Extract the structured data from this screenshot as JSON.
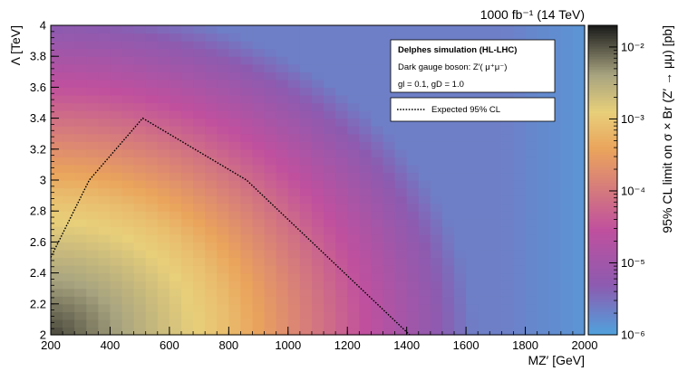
{
  "header": {
    "luminosity": "1000 fb⁻¹ (14 TeV)"
  },
  "legend": {
    "title": "Delphes simulation (HL-LHC)",
    "model": "Dark gauge boson: Z′( μ⁺μ⁻)",
    "couplings": "gl = 0.1, gD = 1.0",
    "curve_label": "Expected 95% CL"
  },
  "colors": {
    "dark_corner": "#1a1a1a",
    "yellow": "#e8cf7a",
    "orange": "#eaa45c",
    "magenta": "#c0509e",
    "purple": "#8c5bb0",
    "blue": "#4fa3de",
    "curve": "#000000"
  },
  "chart_data": {
    "type": "heatmap",
    "xlabel": "MZ′ [GeV]",
    "ylabel": "Λ [TeV]",
    "zlabel": "95% CL limit on σ × Br (Z′ → μμ) [pb]",
    "xlim": [
      200,
      2000
    ],
    "ylim": [
      2,
      4
    ],
    "zlim": [
      1e-06,
      0.02
    ],
    "zscale": "log",
    "x_ticks": [
      "200",
      "400",
      "600",
      "800",
      "1000",
      "1200",
      "1400",
      "1600",
      "1800",
      "2000"
    ],
    "y_ticks": [
      "2",
      "2.2",
      "2.4",
      "2.6",
      "2.8",
      "3",
      "3.2",
      "3.4",
      "3.6",
      "3.8",
      "4"
    ],
    "z_ticks": [
      "10⁻⁶",
      "10⁻⁵",
      "10⁻⁴",
      "10⁻³",
      "10⁻²"
    ],
    "series": [
      {
        "name": "Expected 95% CL",
        "style": "dotted",
        "x": [
          200,
          330,
          510,
          860,
          1410
        ],
        "y": [
          2.5,
          3.0,
          3.4,
          3.0,
          2.0
        ]
      }
    ]
  }
}
